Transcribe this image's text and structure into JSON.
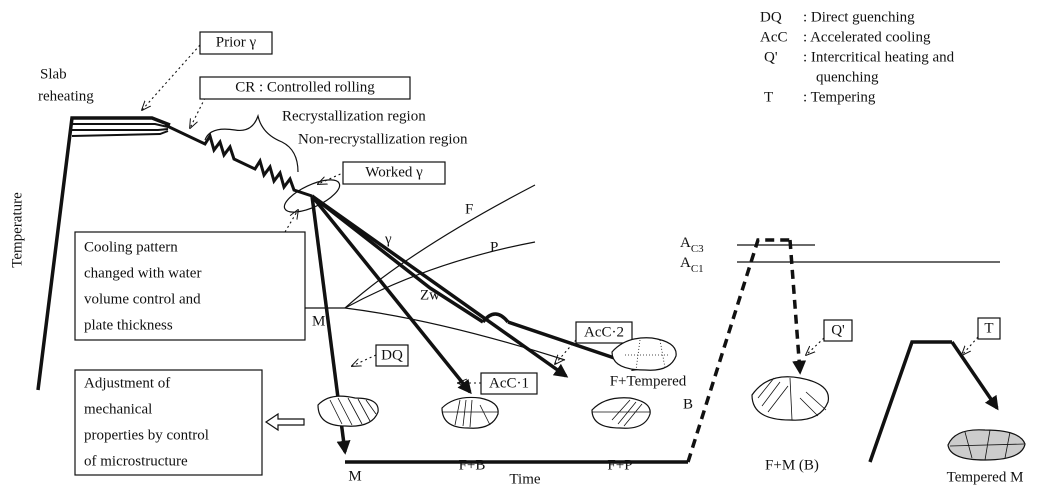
{
  "legend": [
    {
      "abbr": "DQ",
      "desc": [
        ": Direct guenching"
      ]
    },
    {
      "abbr": "AcC",
      "desc": [
        ": Accelerated cooling"
      ]
    },
    {
      "abbr": "Q'",
      "desc": [
        ": Intercritical heating and",
        "quenching"
      ]
    },
    {
      "abbr": "T",
      "desc": [
        ": Tempering"
      ]
    }
  ],
  "axes": {
    "y_label": "Temperature",
    "x_label": "Time"
  },
  "process_labels": {
    "slab_reheating": [
      "Slab",
      "reheating"
    ],
    "prior_gamma": "Prior γ",
    "controlled_rolling": "CR : Controlled rolling",
    "recrystallization": "Recrystallization region",
    "non_recrystallization": "Non-recrystallization region",
    "worked_gamma": "Worked γ"
  },
  "notes": {
    "cooling_pattern": [
      "Cooling pattern",
      "changed with water",
      "volume control and",
      "plate thickness"
    ],
    "adjustment": [
      "Adjustment of",
      "mechanical",
      "properties by control",
      "of microstructure"
    ]
  },
  "phase_regions": {
    "gamma": "γ",
    "ferrite": "F",
    "pearlite": "P",
    "martensite": "M",
    "zw": "Zw"
  },
  "critical_temperatures": [
    {
      "symbol": "A",
      "subscript": "C3"
    },
    {
      "symbol": "A",
      "subscript": "C1"
    }
  ],
  "processes": [
    "DQ",
    "AcC·1",
    "AcC·2",
    "Q'",
    "T"
  ],
  "microstructures": [
    [
      "M"
    ],
    [
      "F+B"
    ],
    [
      "F+Tempered",
      "B"
    ],
    [
      "F+P"
    ],
    [
      "F+M (B)"
    ],
    [
      "Tempered M"
    ]
  ]
}
